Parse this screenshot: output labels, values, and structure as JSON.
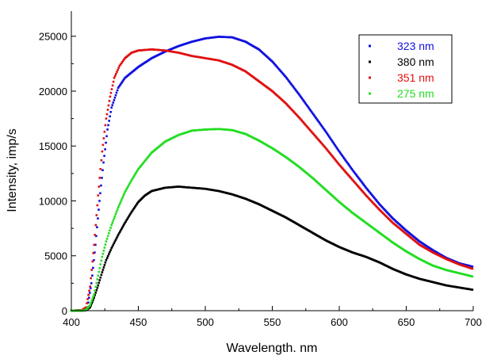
{
  "chart_data": {
    "type": "scatter",
    "xlabel": "Wavelength. nm",
    "ylabel": "Intensity, imp/s",
    "xlim": [
      400,
      700
    ],
    "ylim": [
      0,
      27000
    ],
    "x_ticks": [
      400,
      450,
      500,
      550,
      600,
      650,
      700
    ],
    "y_ticks": [
      0,
      5000,
      10000,
      15000,
      20000,
      25000
    ],
    "grid": false,
    "legend_position": "top-right",
    "series": [
      {
        "name": "323 nm",
        "color": "#1010e0",
        "points": [
          [
            400,
            0
          ],
          [
            408,
            50
          ],
          [
            412,
            300
          ],
          [
            415,
            2500
          ],
          [
            418,
            6000
          ],
          [
            421,
            10000
          ],
          [
            424,
            13500
          ],
          [
            427,
            16500
          ],
          [
            430,
            18500
          ],
          [
            435,
            20300
          ],
          [
            440,
            21200
          ],
          [
            450,
            22200
          ],
          [
            460,
            23000
          ],
          [
            470,
            23600
          ],
          [
            480,
            24100
          ],
          [
            490,
            24500
          ],
          [
            500,
            24800
          ],
          [
            510,
            24950
          ],
          [
            520,
            24900
          ],
          [
            530,
            24500
          ],
          [
            540,
            23800
          ],
          [
            550,
            22700
          ],
          [
            560,
            21300
          ],
          [
            570,
            19700
          ],
          [
            580,
            18000
          ],
          [
            590,
            16300
          ],
          [
            600,
            14500
          ],
          [
            610,
            12800
          ],
          [
            620,
            11200
          ],
          [
            630,
            9700
          ],
          [
            640,
            8400
          ],
          [
            650,
            7300
          ],
          [
            660,
            6300
          ],
          [
            670,
            5500
          ],
          [
            680,
            4800
          ],
          [
            690,
            4300
          ],
          [
            700,
            4000
          ]
        ]
      },
      {
        "name": "380 nm",
        "color": "#000000",
        "points": [
          [
            400,
            0
          ],
          [
            408,
            0
          ],
          [
            411,
            50
          ],
          [
            414,
            300
          ],
          [
            417,
            1200
          ],
          [
            420,
            2300
          ],
          [
            423,
            3500
          ],
          [
            426,
            4600
          ],
          [
            430,
            5700
          ],
          [
            435,
            6900
          ],
          [
            440,
            8000
          ],
          [
            445,
            9000
          ],
          [
            450,
            9900
          ],
          [
            455,
            10500
          ],
          [
            460,
            10900
          ],
          [
            470,
            11200
          ],
          [
            480,
            11300
          ],
          [
            490,
            11200
          ],
          [
            500,
            11100
          ],
          [
            510,
            10900
          ],
          [
            520,
            10600
          ],
          [
            530,
            10200
          ],
          [
            540,
            9700
          ],
          [
            550,
            9100
          ],
          [
            560,
            8500
          ],
          [
            570,
            7800
          ],
          [
            580,
            7100
          ],
          [
            590,
            6400
          ],
          [
            600,
            5800
          ],
          [
            610,
            5300
          ],
          [
            620,
            4900
          ],
          [
            630,
            4400
          ],
          [
            640,
            3800
          ],
          [
            650,
            3300
          ],
          [
            660,
            2900
          ],
          [
            670,
            2600
          ],
          [
            680,
            2300
          ],
          [
            690,
            2100
          ],
          [
            700,
            1900
          ]
        ]
      },
      {
        "name": "351 nm",
        "color": "#e01010",
        "points": [
          [
            400,
            0
          ],
          [
            408,
            50
          ],
          [
            411,
            300
          ],
          [
            414,
            2200
          ],
          [
            417,
            6000
          ],
          [
            420,
            10500
          ],
          [
            423,
            14500
          ],
          [
            426,
            17500
          ],
          [
            429,
            19500
          ],
          [
            432,
            21200
          ],
          [
            436,
            22300
          ],
          [
            440,
            23000
          ],
          [
            445,
            23500
          ],
          [
            450,
            23700
          ],
          [
            460,
            23800
          ],
          [
            470,
            23700
          ],
          [
            480,
            23500
          ],
          [
            490,
            23200
          ],
          [
            500,
            23000
          ],
          [
            510,
            22800
          ],
          [
            520,
            22400
          ],
          [
            530,
            21800
          ],
          [
            540,
            20900
          ],
          [
            550,
            20000
          ],
          [
            560,
            18900
          ],
          [
            570,
            17600
          ],
          [
            580,
            16200
          ],
          [
            590,
            14800
          ],
          [
            600,
            13300
          ],
          [
            610,
            11900
          ],
          [
            620,
            10500
          ],
          [
            630,
            9200
          ],
          [
            640,
            8000
          ],
          [
            650,
            7000
          ],
          [
            660,
            6000
          ],
          [
            670,
            5300
          ],
          [
            680,
            4700
          ],
          [
            690,
            4200
          ],
          [
            700,
            3800
          ]
        ]
      },
      {
        "name": "275 nm",
        "color": "#22dd22",
        "points": [
          [
            400,
            0
          ],
          [
            408,
            0
          ],
          [
            411,
            80
          ],
          [
            414,
            500
          ],
          [
            417,
            1500
          ],
          [
            420,
            3200
          ],
          [
            423,
            4900
          ],
          [
            426,
            6300
          ],
          [
            430,
            7800
          ],
          [
            435,
            9400
          ],
          [
            440,
            10800
          ],
          [
            445,
            11900
          ],
          [
            450,
            12900
          ],
          [
            460,
            14400
          ],
          [
            470,
            15400
          ],
          [
            480,
            16000
          ],
          [
            490,
            16400
          ],
          [
            500,
            16500
          ],
          [
            510,
            16550
          ],
          [
            520,
            16450
          ],
          [
            530,
            16100
          ],
          [
            540,
            15500
          ],
          [
            550,
            14800
          ],
          [
            560,
            14000
          ],
          [
            570,
            13100
          ],
          [
            580,
            12100
          ],
          [
            590,
            11000
          ],
          [
            600,
            9900
          ],
          [
            610,
            8900
          ],
          [
            620,
            8000
          ],
          [
            630,
            7100
          ],
          [
            640,
            6200
          ],
          [
            650,
            5400
          ],
          [
            660,
            4700
          ],
          [
            670,
            4100
          ],
          [
            680,
            3700
          ],
          [
            690,
            3400
          ],
          [
            700,
            3100
          ]
        ]
      }
    ]
  }
}
